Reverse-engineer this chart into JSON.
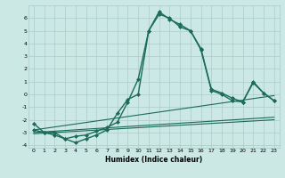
{
  "title": "",
  "xlabel": "Humidex (Indice chaleur)",
  "ylabel": "",
  "bg_color": "#cce8e4",
  "grid_color": "#aaccca",
  "line_color": "#1a6b5a",
  "xlim": [
    -0.5,
    23.5
  ],
  "ylim": [
    -4.2,
    7.0
  ],
  "xticks": [
    0,
    1,
    2,
    3,
    4,
    5,
    6,
    7,
    8,
    9,
    10,
    11,
    12,
    13,
    14,
    15,
    16,
    17,
    18,
    19,
    20,
    21,
    22,
    23
  ],
  "yticks": [
    -4,
    -3,
    -2,
    -1,
    0,
    1,
    2,
    3,
    4,
    5,
    6
  ],
  "series": [
    {
      "x": [
        0,
        1,
        2,
        3,
        4,
        5,
        6,
        7,
        8,
        9,
        10,
        11,
        12,
        13,
        14,
        15,
        16,
        17,
        18,
        19,
        20,
        21,
        22,
        23
      ],
      "y": [
        -2.3,
        -3.0,
        -3.0,
        -3.5,
        -3.3,
        -3.2,
        -2.9,
        -2.6,
        -2.2,
        -0.6,
        1.2,
        5.0,
        6.3,
        6.0,
        5.3,
        5.0,
        3.5,
        0.3,
        0.0,
        -0.5,
        -0.6,
        0.9,
        0.1,
        -0.5
      ],
      "marker": "D",
      "markersize": 2,
      "linewidth": 1.0
    },
    {
      "x": [
        0,
        1,
        2,
        3,
        4,
        5,
        6,
        7,
        8,
        9,
        10,
        11,
        12,
        13,
        14,
        15,
        16,
        17,
        18,
        19,
        20,
        21,
        22,
        23
      ],
      "y": [
        -2.8,
        -3.0,
        -3.2,
        -3.5,
        -3.8,
        -3.5,
        -3.2,
        -2.8,
        -1.5,
        -0.4,
        0.0,
        5.0,
        6.5,
        5.9,
        5.5,
        5.0,
        3.6,
        0.4,
        0.1,
        -0.3,
        -0.6,
        1.0,
        0.1,
        -0.5
      ],
      "marker": "D",
      "markersize": 2,
      "linewidth": 1.0
    },
    {
      "x": [
        0,
        23
      ],
      "y": [
        -2.8,
        -0.1
      ],
      "marker": null,
      "markersize": 0,
      "linewidth": 0.8
    },
    {
      "x": [
        0,
        23
      ],
      "y": [
        -3.0,
        -1.8
      ],
      "marker": null,
      "markersize": 0,
      "linewidth": 0.8
    },
    {
      "x": [
        0,
        23
      ],
      "y": [
        -3.1,
        -2.0
      ],
      "marker": null,
      "markersize": 0,
      "linewidth": 0.8
    }
  ],
  "xlabel_fontsize": 5.5,
  "tick_fontsize": 4.5
}
